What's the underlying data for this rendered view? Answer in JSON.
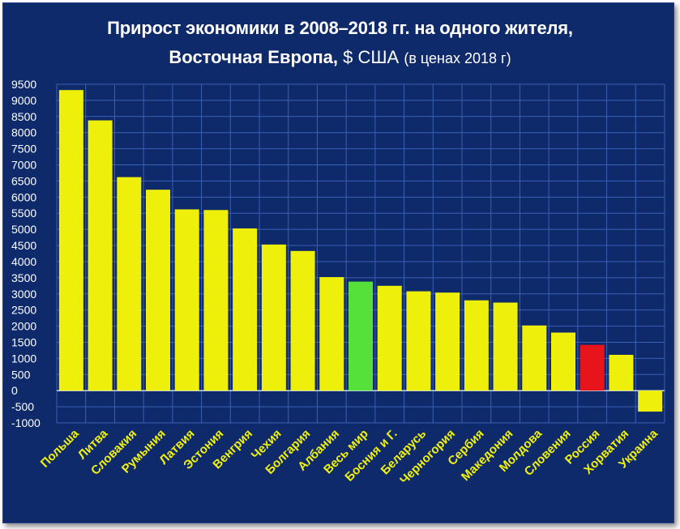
{
  "title": {
    "line1": "Прирост экономики в 2008–2018 гг. на одного жителя,",
    "line2_bold": "Восточная Европа,",
    "line2_currency": "$ США",
    "line2_note": "(в ценах 2018 г)"
  },
  "colors": {
    "background": "#0f2a6b",
    "bar_default": "#eef00c",
    "bar_world": "#55e03a",
    "bar_russia": "#e8141c",
    "category_label": "#f2f20a",
    "grid": "#3b5fb5"
  },
  "chart_data": {
    "type": "bar",
    "title": "Прирост экономики в 2008–2018 гг. на одного жителя, Восточная Европа, $ США (в ценах 2018 г)",
    "xlabel": "",
    "ylabel": "",
    "ylim": [
      -1000,
      9500
    ],
    "ytick_step": 500,
    "grid": true,
    "yticks": [
      "9500",
      "9000",
      "8500",
      "8000",
      "7500",
      "7000",
      "6500",
      "6000",
      "5500",
      "5000",
      "4500",
      "4000",
      "3500",
      "3000",
      "2500",
      "2000",
      "1500",
      "1000",
      "500",
      "0",
      "-500",
      "-1000"
    ],
    "categories": [
      "Польша",
      "Литва",
      "Словакия",
      "Румыния",
      "Латвия",
      "Эстония",
      "Венгрия",
      "Чехия",
      "Болгария",
      "Албания",
      "Весь мир",
      "Босния и Г.",
      "Беларусь",
      "Черногория",
      "Сербия",
      "Македония",
      "Молдова",
      "Словения",
      "Россия",
      "Хорватия",
      "Украина"
    ],
    "values": [
      9320,
      8380,
      6620,
      6230,
      5620,
      5600,
      5030,
      4530,
      4330,
      3520,
      3380,
      3250,
      3080,
      3040,
      2800,
      2730,
      2020,
      1800,
      1420,
      1110,
      -650
    ],
    "bar_colors": [
      "#eef00c",
      "#eef00c",
      "#eef00c",
      "#eef00c",
      "#eef00c",
      "#eef00c",
      "#eef00c",
      "#eef00c",
      "#eef00c",
      "#eef00c",
      "#55e03a",
      "#eef00c",
      "#eef00c",
      "#eef00c",
      "#eef00c",
      "#eef00c",
      "#eef00c",
      "#eef00c",
      "#e8141c",
      "#eef00c",
      "#eef00c"
    ]
  }
}
